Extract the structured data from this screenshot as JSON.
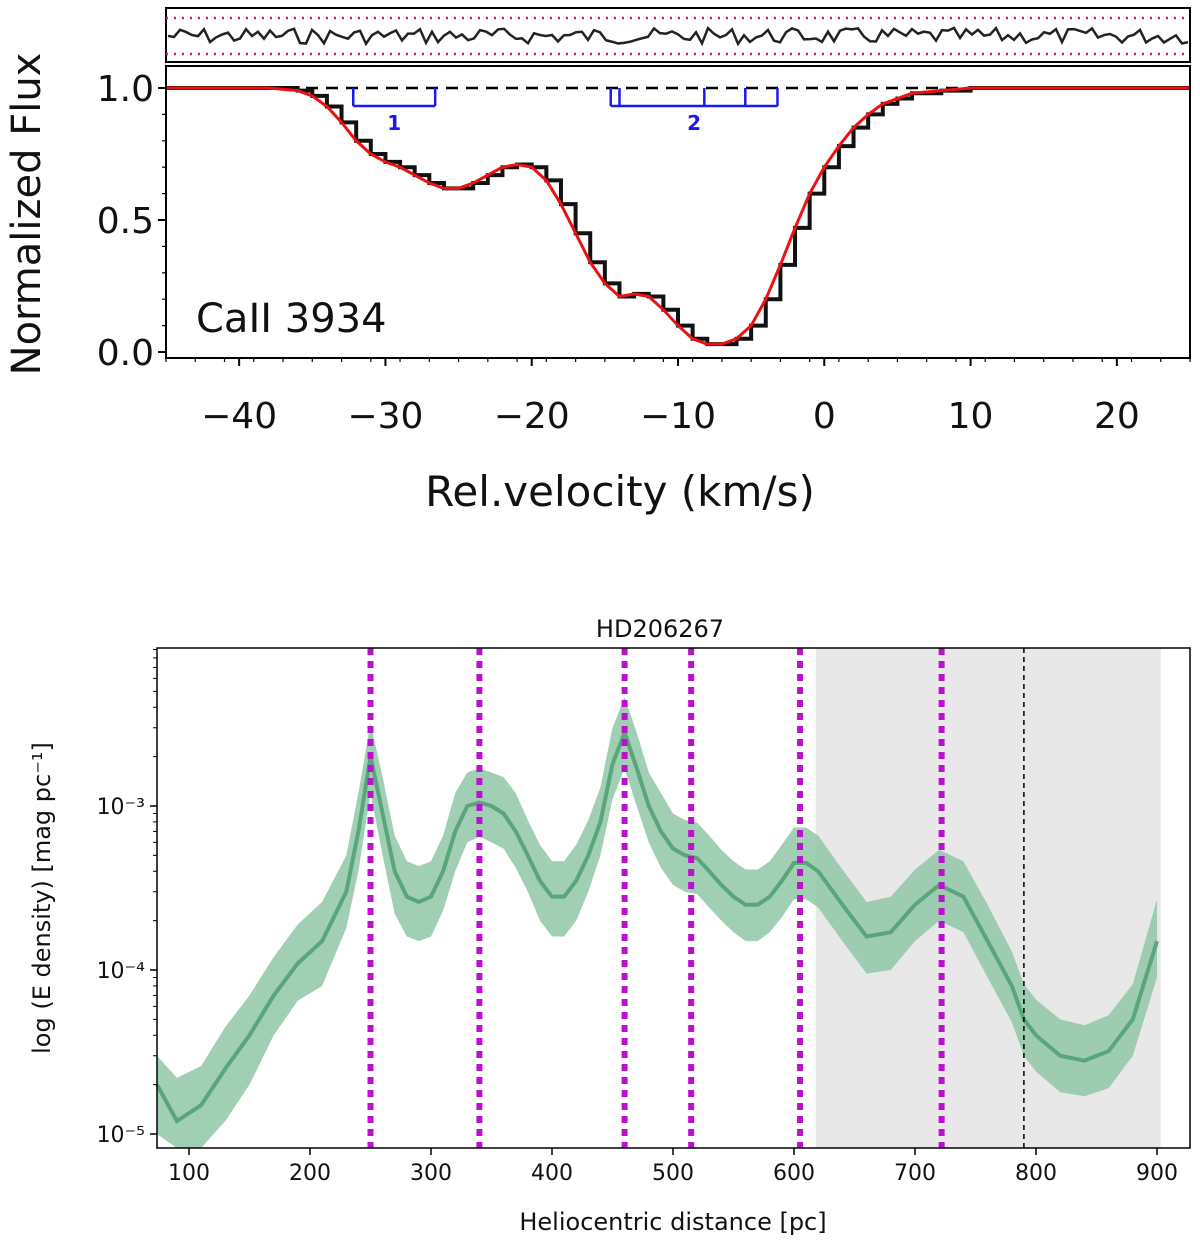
{
  "chart_data": [
    {
      "type": "line",
      "panel": "top",
      "label": "CaII 3934",
      "xlabel": "Rel.velocity (km/s)",
      "ylabel": "Normalized Flux",
      "xlim": [
        -45,
        25
      ],
      "ylim": [
        0.0,
        1.03
      ],
      "xticks": [
        -40,
        -30,
        -20,
        -10,
        0,
        10,
        20
      ],
      "xtick_labels": [
        "−40",
        "−30",
        "−20",
        "−10",
        "0",
        "10",
        "20"
      ],
      "yticks": [
        0.0,
        0.5,
        1.0
      ],
      "ytick_labels": [
        "0.0",
        "0.5",
        "1.0"
      ],
      "continuum": 1.0,
      "colors": {
        "data": "#111111",
        "model": "#ee1111",
        "components": "#1a1aee",
        "residual_limits": "#dd2255",
        "continuum": "#000000"
      },
      "series": [
        {
          "name": "",
          "role": "observed",
          "x": [
            -45,
            -42,
            -40,
            -38,
            -36,
            -35,
            -34,
            -33,
            -32,
            -31,
            -30,
            -29,
            -28,
            -27,
            -26,
            -25,
            -24,
            -23,
            -22,
            -21,
            -20,
            -19,
            -18,
            -17,
            -16,
            -15,
            -14,
            -13,
            -12,
            -11,
            -10,
            -9,
            -8,
            -7,
            -6,
            -5,
            -4,
            -3,
            -2,
            -1,
            0,
            1,
            2,
            3,
            4,
            5,
            6,
            8,
            10,
            12,
            15,
            20,
            25
          ],
          "y": [
            1.0,
            1.0,
            1.0,
            1.0,
            0.99,
            0.97,
            0.93,
            0.87,
            0.8,
            0.75,
            0.72,
            0.7,
            0.67,
            0.64,
            0.62,
            0.62,
            0.64,
            0.67,
            0.7,
            0.71,
            0.7,
            0.65,
            0.56,
            0.45,
            0.34,
            0.26,
            0.21,
            0.22,
            0.21,
            0.16,
            0.1,
            0.05,
            0.03,
            0.03,
            0.05,
            0.1,
            0.2,
            0.33,
            0.47,
            0.6,
            0.7,
            0.78,
            0.85,
            0.9,
            0.94,
            0.96,
            0.98,
            0.99,
            1.0,
            1.0,
            1.0,
            1.0,
            1.0
          ]
        },
        {
          "name": "",
          "role": "model",
          "x": [
            -45,
            -42,
            -40,
            -38,
            -36,
            -35,
            -34,
            -33,
            -32,
            -31,
            -30,
            -29,
            -28,
            -27,
            -26,
            -25,
            -24,
            -23,
            -22,
            -21,
            -20,
            -19,
            -18,
            -17,
            -16,
            -15,
            -14,
            -13,
            -12,
            -11,
            -10,
            -9,
            -8,
            -7,
            -6,
            -5,
            -4,
            -3,
            -2,
            -1,
            0,
            1,
            2,
            3,
            4,
            5,
            6,
            8,
            10,
            12,
            15,
            20,
            25
          ],
          "y": [
            1.0,
            1.0,
            1.0,
            1.0,
            0.99,
            0.97,
            0.93,
            0.87,
            0.8,
            0.75,
            0.72,
            0.7,
            0.67,
            0.64,
            0.62,
            0.62,
            0.64,
            0.67,
            0.7,
            0.71,
            0.7,
            0.65,
            0.56,
            0.45,
            0.34,
            0.26,
            0.21,
            0.22,
            0.21,
            0.16,
            0.1,
            0.05,
            0.03,
            0.03,
            0.05,
            0.1,
            0.2,
            0.33,
            0.47,
            0.6,
            0.7,
            0.78,
            0.85,
            0.9,
            0.94,
            0.96,
            0.98,
            0.99,
            1.0,
            1.0,
            1.0,
            1.0,
            1.0
          ]
        }
      ],
      "components": [
        {
          "label": "1",
          "x_start": -32.2,
          "x_end": -26.6,
          "ticks": [
            -32.2,
            -26.6
          ]
        },
        {
          "label": "2",
          "x_start": -14.6,
          "x_end": -3.2,
          "ticks": [
            -14.6,
            -14.0,
            -8.2,
            -5.4,
            -3.2
          ]
        }
      ]
    },
    {
      "type": "area",
      "panel": "bottom",
      "title": "HD206267",
      "xlabel": "Heliocentric distance [pc]",
      "ylabel": "log (E density) [mag pc⁻¹]",
      "xlim": [
        70,
        910
      ],
      "ylim": [
        8e-06,
        0.009
      ],
      "yscale": "log",
      "xticks": [
        100,
        200,
        300,
        400,
        500,
        600,
        700,
        800,
        900
      ],
      "yticks": [
        1e-05,
        0.0001,
        0.001
      ],
      "ytick_labels": [
        "10⁻⁵",
        "10⁻⁴",
        "10⁻³"
      ],
      "colors": {
        "line": "#5aa67c",
        "band": "#8fc7a6",
        "markers": "#bb11cc",
        "shade": "#e8e8e8",
        "limit": "#000000"
      },
      "series": [
        {
          "name": "",
          "x": [
            70,
            90,
            110,
            130,
            150,
            170,
            190,
            210,
            230,
            240,
            250,
            260,
            270,
            280,
            290,
            300,
            310,
            320,
            330,
            340,
            350,
            360,
            370,
            380,
            390,
            400,
            410,
            420,
            430,
            440,
            450,
            460,
            470,
            480,
            490,
            500,
            510,
            520,
            530,
            540,
            550,
            560,
            570,
            580,
            590,
            600,
            610,
            620,
            640,
            660,
            680,
            700,
            720,
            740,
            760,
            780,
            790,
            800,
            820,
            840,
            860,
            880,
            900
          ],
          "y": [
            2e-05,
            1.2e-05,
            1.5e-05,
            2.5e-05,
            4e-05,
            7e-05,
            0.00011,
            0.00015,
            0.0003,
            0.0007,
            0.002,
            0.0009,
            0.0004,
            0.00028,
            0.00026,
            0.00028,
            0.0004,
            0.0007,
            0.001,
            0.00105,
            0.001,
            0.0009,
            0.0007,
            0.0005,
            0.00035,
            0.00028,
            0.00028,
            0.00035,
            0.0005,
            0.0008,
            0.0018,
            0.0028,
            0.0017,
            0.001,
            0.0007,
            0.00055,
            0.0005,
            0.00048,
            0.0004,
            0.00033,
            0.00028,
            0.00025,
            0.00025,
            0.00028,
            0.00035,
            0.00045,
            0.00045,
            0.0004,
            0.00025,
            0.00016,
            0.00017,
            0.00025,
            0.00033,
            0.00028,
            0.00015,
            8e-05,
            5e-05,
            4e-05,
            3e-05,
            2.8e-05,
            3.2e-05,
            5e-05,
            0.00015
          ],
          "lower": [
            1e-05,
            7e-06,
            8e-06,
            1.2e-05,
            2e-05,
            4e-05,
            6.5e-05,
            8e-05,
            0.00018,
            0.0004,
            0.0012,
            0.0005,
            0.00022,
            0.00016,
            0.00015,
            0.00016,
            0.00023,
            0.0004,
            0.0006,
            0.00065,
            0.0006,
            0.00055,
            0.00042,
            0.0003,
            0.0002,
            0.00016,
            0.00016,
            0.0002,
            0.0003,
            0.0005,
            0.0011,
            0.0017,
            0.001,
            0.0006,
            0.00042,
            0.00033,
            0.0003,
            0.00029,
            0.00024,
            0.0002,
            0.00017,
            0.00015,
            0.00015,
            0.00017,
            0.00021,
            0.00027,
            0.00027,
            0.00024,
            0.00015,
            9.5e-05,
            0.0001,
            0.00015,
            0.0002,
            0.00017,
            9e-05,
            4.8e-05,
            3e-05,
            2.4e-05,
            1.8e-05,
            1.7e-05,
            1.9e-05,
            3e-05,
            9e-05
          ],
          "upper": [
            3e-05,
            2.2e-05,
            2.6e-05,
            4.5e-05,
            7e-05,
            0.00012,
            0.00019,
            0.00026,
            0.0005,
            0.0012,
            0.0032,
            0.0015,
            0.00066,
            0.00046,
            0.00043,
            0.00046,
            0.00066,
            0.0012,
            0.0016,
            0.0017,
            0.0016,
            0.0015,
            0.0012,
            0.00082,
            0.00058,
            0.00046,
            0.00046,
            0.00058,
            0.00082,
            0.0013,
            0.003,
            0.0046,
            0.0028,
            0.0016,
            0.0012,
            0.0009,
            0.00082,
            0.00079,
            0.00066,
            0.00054,
            0.00046,
            0.00041,
            0.00041,
            0.00046,
            0.00058,
            0.00074,
            0.00074,
            0.00066,
            0.00041,
            0.00026,
            0.00028,
            0.00041,
            0.00054,
            0.00046,
            0.00025,
            0.00013,
            8.2e-05,
            6.6e-05,
            5e-05,
            4.6e-05,
            5.3e-05,
            8.2e-05,
            0.00027
          ]
        }
      ],
      "vlines_dotted": [
        250,
        340,
        460,
        515,
        605,
        722
      ],
      "vline_dashed": 790,
      "shaded_region": [
        618,
        903
      ]
    }
  ]
}
